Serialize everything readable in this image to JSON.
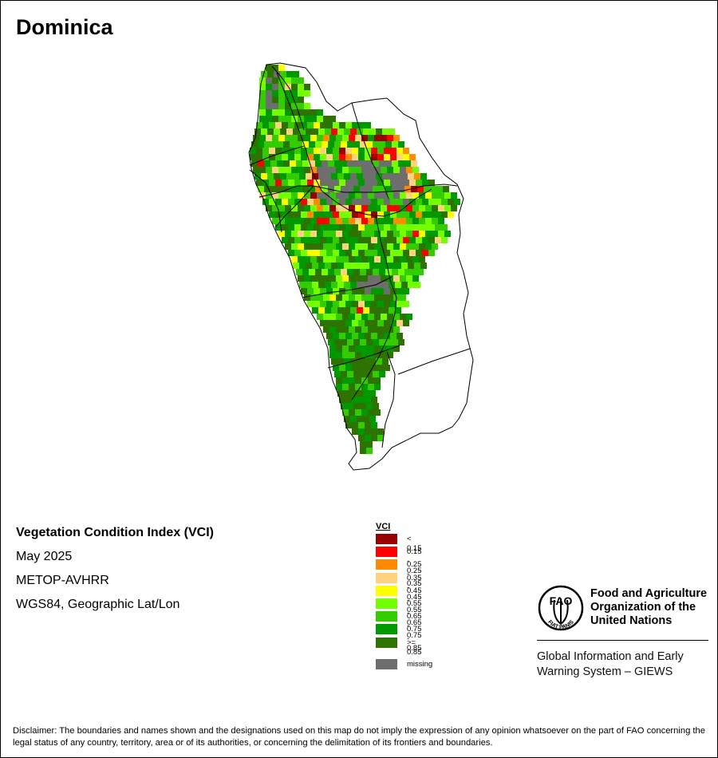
{
  "title": "Dominica",
  "info": {
    "product": "Vegetation Condition Index (VCI)",
    "period": "May 2025",
    "sensor": "METOP-AVHRR",
    "projection": "WGS84, Geographic Lat/Lon"
  },
  "legend": {
    "title": "VCI",
    "classes": [
      {
        "label": "< 0.15",
        "color": "#990000"
      },
      {
        "label": "0.15 - 0.25",
        "color": "#ff0000"
      },
      {
        "label": "0.25 - 0.35",
        "color": "#ff8c00"
      },
      {
        "label": "0.35 - 0.45",
        "color": "#ffd27f"
      },
      {
        "label": "0.45 - 0.55",
        "color": "#ffff00"
      },
      {
        "label": "0.55 - 0.65",
        "color": "#73ff00"
      },
      {
        "label": "0.65 - 0.75",
        "color": "#33cc00"
      },
      {
        "label": "0.75 - 0.85",
        "color": "#009900"
      },
      {
        "label": ">= 0.85",
        "color": "#2e7300"
      }
    ],
    "missing": {
      "label": "missing",
      "color": "#6e6e6e"
    }
  },
  "organization": {
    "name": [
      "Food and Agriculture",
      "Organization of the",
      "United Nations"
    ],
    "logo_text": "FAO",
    "logo_motto": "FIAT PANIS",
    "unit": [
      "Global Information and Early",
      "Warning System – GIEWS"
    ]
  },
  "disclaimer": "Disclaimer: The boundaries and names shown and the designations used on this map do not imply the expression of any opinion whatsoever on the part of FAO concerning the legal status of any country, territory, area or of its authorities, or concerning the delimitation of its frontiers and boundaries."
}
